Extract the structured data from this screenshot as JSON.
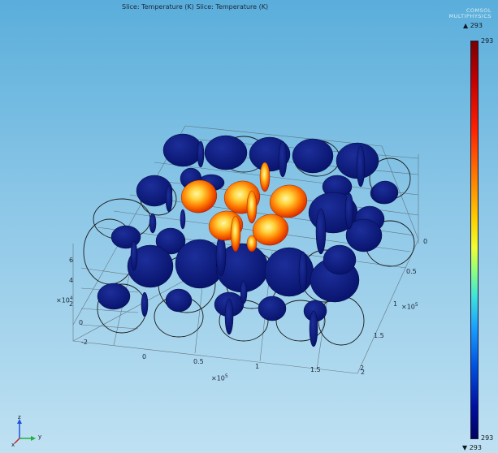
{
  "plot": {
    "title": "Slice: Temperature (K)  Slice: Temperature (K)",
    "logo_line1": "COMSOL",
    "logo_line2": "MULTIPHYSICS"
  },
  "colorbar": {
    "max_arrow_label": "▲ 293",
    "min_arrow_label": "▼ 293",
    "top_label": "293",
    "bottom_label": "293"
  },
  "axes": {
    "z_scale": "×10",
    "z_exp": "4",
    "z_ticks": [
      "6",
      "4",
      "2",
      "0",
      "-2"
    ],
    "x_scale": "×10",
    "x_exp": "5",
    "x_ticks": [
      "0",
      "0.5",
      "1",
      "1.5",
      "2"
    ],
    "y_scale": "×10",
    "y_exp": "5",
    "y_ticks": [
      "0",
      "0.5",
      "1",
      "1.5",
      "2"
    ]
  },
  "triad": {
    "z": "z",
    "y": "y",
    "x": "x"
  },
  "colors": {
    "hot_center": "#fff06a",
    "hot_edge": "#e83a00",
    "cold": "#0a1a7a",
    "wire": "#1a1a1a"
  }
}
